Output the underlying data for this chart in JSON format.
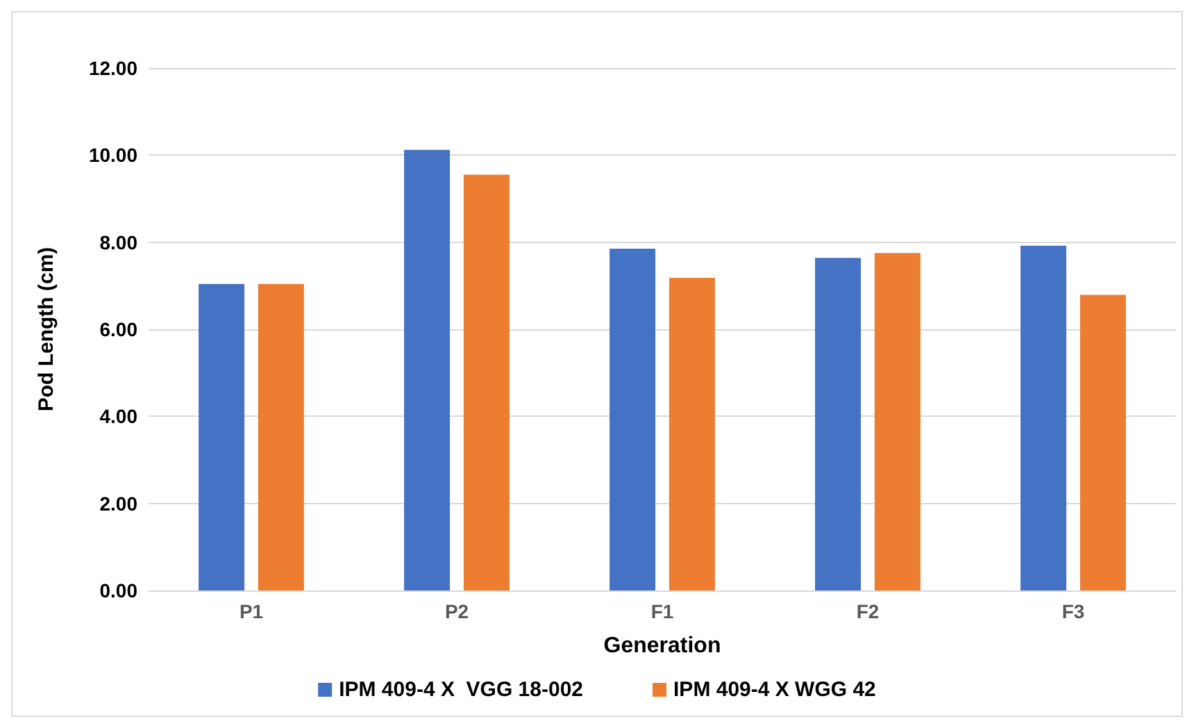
{
  "chart_data": {
    "type": "bar",
    "xlabel": "Generation",
    "ylabel": "Pod Length (cm)",
    "categories": [
      "P1",
      "P2",
      "F1",
      "F2",
      "F3"
    ],
    "series": [
      {
        "name": "IPM 409-4 X  VGG 18-002",
        "color": "#4472c4",
        "values": [
          7.04,
          10.12,
          7.85,
          7.64,
          7.92
        ]
      },
      {
        "name": "IPM 409-4 X WGG 42",
        "color": "#ed7d31",
        "values": [
          7.04,
          9.55,
          7.18,
          7.75,
          6.79
        ]
      }
    ],
    "ylim": [
      0,
      12
    ],
    "yticks": [
      {
        "value": 0,
        "label": "0.00"
      },
      {
        "value": 2,
        "label": "2.00"
      },
      {
        "value": 4,
        "label": "4.00"
      },
      {
        "value": 6,
        "label": "6.00"
      },
      {
        "value": 8,
        "label": "8.00"
      },
      {
        "value": 10,
        "label": "10.00"
      },
      {
        "value": 12,
        "label": "12.00"
      }
    ],
    "grid": "y",
    "legend": "bottom"
  }
}
